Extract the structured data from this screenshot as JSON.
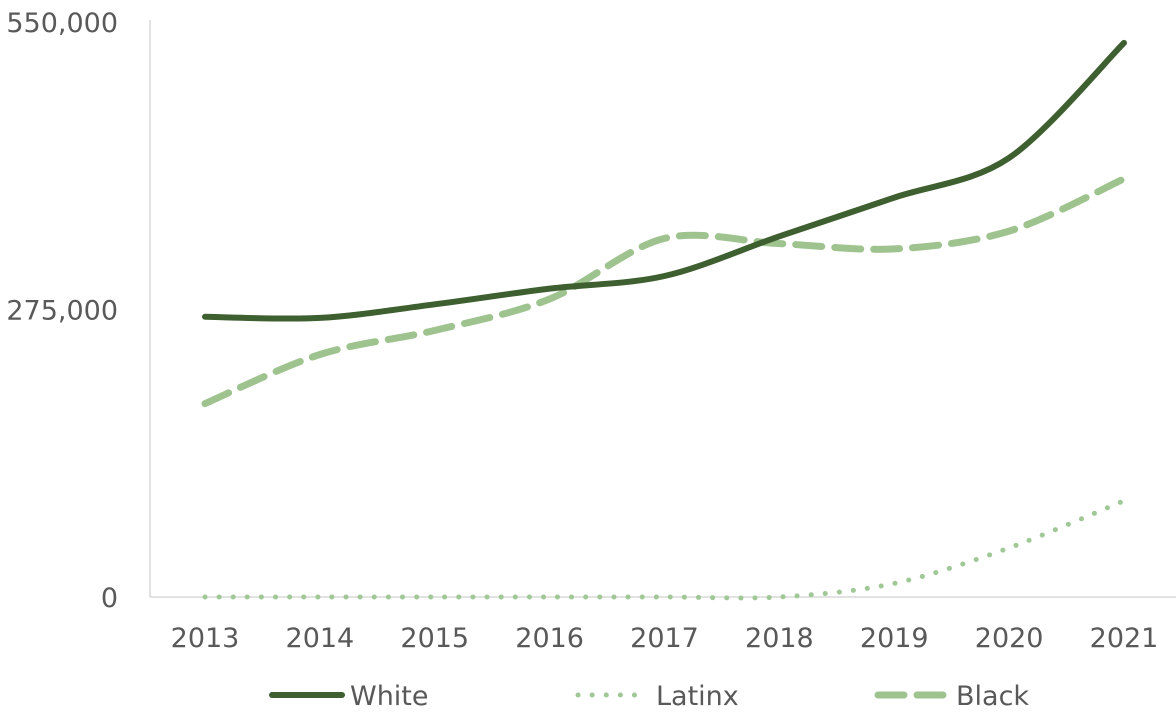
{
  "chart_data": {
    "type": "line",
    "title": "",
    "xlabel": "",
    "ylabel": "",
    "categories": [
      "2013",
      "2014",
      "2015",
      "2016",
      "2017",
      "2018",
      "2019",
      "2020",
      "2021"
    ],
    "y_ticks": [
      {
        "value": 0,
        "label": "0"
      },
      {
        "value": 275000,
        "label": "275,000"
      },
      {
        "value": 550000,
        "label": "550,000"
      }
    ],
    "ylim": [
      0,
      550000
    ],
    "grid": false,
    "legend_position": "bottom",
    "series": [
      {
        "name": "White",
        "color": "#3e5f2f",
        "style": "solid",
        "values": [
          268000,
          267000,
          280000,
          295000,
          307000,
          345000,
          382000,
          420000,
          530000
        ]
      },
      {
        "name": "Latinx",
        "color": "#a0c896",
        "style": "dotted",
        "values": [
          0,
          0,
          0,
          0,
          0,
          0,
          13000,
          47000,
          92000
        ]
      },
      {
        "name": "Black",
        "color": "#9ec38f",
        "style": "dashed",
        "values": [
          185000,
          232000,
          255000,
          285000,
          343000,
          338000,
          333000,
          350000,
          400000
        ]
      }
    ]
  }
}
